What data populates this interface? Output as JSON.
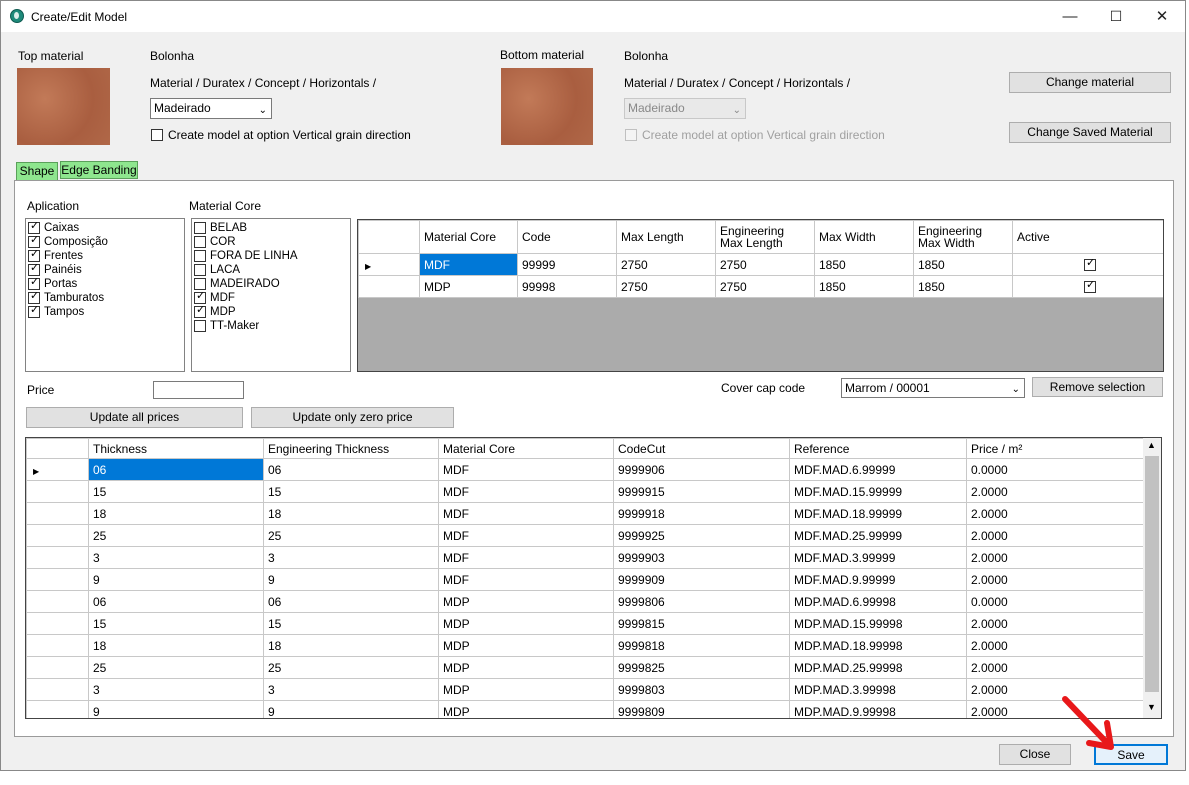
{
  "window": {
    "title": "Create/Edit Model"
  },
  "titlebar": {
    "min": "—",
    "max": "☐",
    "close": "✕"
  },
  "top": {
    "label": "Top material",
    "name": "Bolonha",
    "path": "Material / Duratex / Concept / Horizontals /",
    "combo": "Madeirado",
    "checkbox_label": "Create model at option Vertical grain direction"
  },
  "bottom": {
    "label": "Bottom material",
    "name": "Bolonha",
    "path": "Material / Duratex / Concept / Horizontals /",
    "combo": "Madeirado",
    "checkbox_label": "Create model at option Vertical grain direction"
  },
  "buttons": {
    "change_material": "Change material",
    "change_saved": "Change Saved Material",
    "update_all": "Update all prices",
    "update_zero": "Update only zero price",
    "remove_selection": "Remove selection",
    "close": "Close",
    "save": "Save"
  },
  "tabs": [
    "Shape",
    "Edge Banding"
  ],
  "aplication": {
    "label": "Aplication",
    "items": [
      {
        "label": "Caixas",
        "checked": true
      },
      {
        "label": "Composição",
        "checked": true
      },
      {
        "label": "Frentes",
        "checked": true
      },
      {
        "label": "Painéis",
        "checked": true
      },
      {
        "label": "Portas",
        "checked": true
      },
      {
        "label": "Tamburatos",
        "checked": true
      },
      {
        "label": "Tampos",
        "checked": true
      }
    ]
  },
  "material_core": {
    "label": "Material Core",
    "items": [
      {
        "label": "BELAB",
        "checked": false
      },
      {
        "label": "COR",
        "checked": false
      },
      {
        "label": "FORA DE LINHA",
        "checked": false
      },
      {
        "label": "LACA",
        "checked": false
      },
      {
        "label": "MADEIRADO",
        "checked": false
      },
      {
        "label": "MDF",
        "checked": true
      },
      {
        "label": "MDP",
        "checked": true
      },
      {
        "label": "TT-Maker",
        "checked": false
      }
    ]
  },
  "core_grid": {
    "headers": [
      "Material Core",
      "Code",
      "Max Length",
      "Engineering\nMax Length",
      "Max Width",
      "Engineering\nMax Width",
      "Active"
    ],
    "rows": [
      [
        "MDF",
        "99999",
        "2750",
        "2750",
        "1850",
        "1850"
      ],
      [
        "MDP",
        "99998",
        "2750",
        "2750",
        "1850",
        "1850"
      ]
    ]
  },
  "price": {
    "label": "Price",
    "value": ""
  },
  "cover_cap": {
    "label": "Cover cap code",
    "value": "Marrom / 00001"
  },
  "thickness_grid": {
    "headers": [
      "Thickness",
      "Engineering Thickness",
      "Material Core",
      "CodeCut",
      "Reference",
      "Price / m²"
    ],
    "rows": [
      [
        "06",
        "06",
        "MDF",
        "9999906",
        "MDF.MAD.6.99999",
        "0.0000"
      ],
      [
        "15",
        "15",
        "MDF",
        "9999915",
        "MDF.MAD.15.99999",
        "2.0000"
      ],
      [
        "18",
        "18",
        "MDF",
        "9999918",
        "MDF.MAD.18.99999",
        "2.0000"
      ],
      [
        "25",
        "25",
        "MDF",
        "9999925",
        "MDF.MAD.25.99999",
        "2.0000"
      ],
      [
        "3",
        "3",
        "MDF",
        "9999903",
        "MDF.MAD.3.99999",
        "2.0000"
      ],
      [
        "9",
        "9",
        "MDF",
        "9999909",
        "MDF.MAD.9.99999",
        "2.0000"
      ],
      [
        "06",
        "06",
        "MDP",
        "9999806",
        "MDP.MAD.6.99998",
        "0.0000"
      ],
      [
        "15",
        "15",
        "MDP",
        "9999815",
        "MDP.MAD.15.99998",
        "2.0000"
      ],
      [
        "18",
        "18",
        "MDP",
        "9999818",
        "MDP.MAD.18.99998",
        "2.0000"
      ],
      [
        "25",
        "25",
        "MDP",
        "9999825",
        "MDP.MAD.25.99998",
        "2.0000"
      ],
      [
        "3",
        "3",
        "MDP",
        "9999803",
        "MDP.MAD.3.99998",
        "2.0000"
      ],
      [
        "9",
        "9",
        "MDP",
        "9999809",
        "MDP.MAD.9.99998",
        "2.0000"
      ]
    ]
  },
  "colors": {
    "selection": "#0078d7",
    "tab_green": "#8ee68e",
    "annotation_arrow": "#e8181a"
  }
}
